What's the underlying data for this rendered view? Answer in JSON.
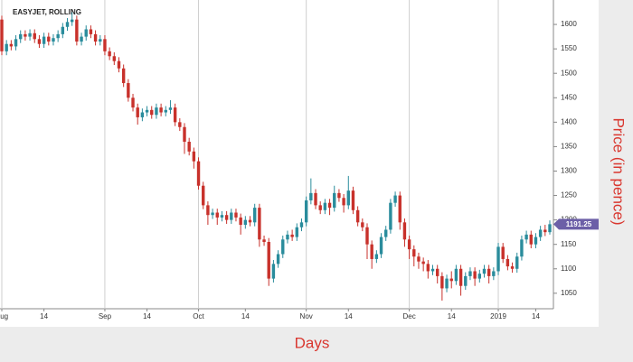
{
  "chart_data": {
    "type": "candlestick",
    "title": "EASYJET, ROLLING",
    "x_label": "Days",
    "y_label": "Price (in pence)",
    "up_color": "#2a8c9c",
    "down_color": "#c8312b",
    "ylim": [
      1022,
      1650
    ],
    "yticks": [
      1050,
      1100,
      1150,
      1200,
      1250,
      1300,
      1350,
      1400,
      1450,
      1500,
      1550,
      1600
    ],
    "categories": [
      "Aug",
      null,
      null,
      null,
      null,
      null,
      null,
      null,
      null,
      "14",
      null,
      null,
      null,
      null,
      null,
      null,
      null,
      null,
      null,
      null,
      null,
      null,
      "Sep",
      null,
      null,
      null,
      null,
      null,
      null,
      null,
      null,
      "14",
      null,
      null,
      null,
      null,
      null,
      null,
      null,
      null,
      null,
      null,
      "Oct",
      null,
      null,
      null,
      null,
      null,
      null,
      null,
      null,
      null,
      "14",
      null,
      null,
      null,
      null,
      null,
      null,
      null,
      null,
      null,
      null,
      null,
      null,
      "Nov",
      null,
      null,
      null,
      null,
      null,
      null,
      null,
      null,
      "14",
      null,
      null,
      null,
      null,
      null,
      null,
      null,
      null,
      null,
      null,
      null,
      null,
      "Dec",
      null,
      null,
      null,
      null,
      null,
      null,
      null,
      null,
      "14",
      null,
      null,
      null,
      null,
      null,
      null,
      null,
      null,
      null,
      "2019",
      null,
      null,
      null,
      null,
      null,
      null,
      null,
      "14",
      null,
      null,
      null
    ],
    "open": [
      1610,
      1545,
      1560,
      1555,
      1570,
      1580,
      1575,
      1582,
      1570,
      1560,
      1575,
      1565,
      1572,
      1580,
      1595,
      1605,
      1610,
      1565,
      1575,
      1590,
      1580,
      1565,
      1570,
      1545,
      1535,
      1525,
      1510,
      1480,
      1450,
      1430,
      1410,
      1420,
      1425,
      1415,
      1430,
      1420,
      1425,
      1430,
      1400,
      1390,
      1360,
      1340,
      1320,
      1270,
      1230,
      1210,
      1215,
      1205,
      1210,
      1200,
      1215,
      1205,
      1190,
      1200,
      1195,
      1225,
      1160,
      1155,
      1080,
      1110,
      1130,
      1160,
      1170,
      1165,
      1185,
      1195,
      1240,
      1255,
      1230,
      1220,
      1235,
      1225,
      1255,
      1245,
      1230,
      1260,
      1220,
      1195,
      1185,
      1150,
      1120,
      1130,
      1165,
      1180,
      1235,
      1250,
      1195,
      1160,
      1140,
      1125,
      1115,
      1110,
      1095,
      1100,
      1085,
      1060,
      1080,
      1075,
      1100,
      1065,
      1085,
      1095,
      1080,
      1090,
      1100,
      1085,
      1095,
      1145,
      1120,
      1105,
      1100,
      1125,
      1160,
      1170,
      1150,
      1165,
      1180,
      1175
    ],
    "high": [
      1618,
      1568,
      1568,
      1578,
      1588,
      1588,
      1590,
      1590,
      1578,
      1583,
      1583,
      1580,
      1588,
      1603,
      1613,
      1625,
      1618,
      1583,
      1598,
      1598,
      1588,
      1578,
      1578,
      1553,
      1543,
      1533,
      1518,
      1488,
      1458,
      1438,
      1428,
      1433,
      1433,
      1438,
      1438,
      1433,
      1445,
      1438,
      1408,
      1398,
      1368,
      1348,
      1328,
      1278,
      1238,
      1223,
      1223,
      1218,
      1218,
      1223,
      1223,
      1213,
      1208,
      1208,
      1233,
      1233,
      1168,
      1163,
      1118,
      1138,
      1168,
      1178,
      1180,
      1193,
      1203,
      1248,
      1285,
      1263,
      1238,
      1243,
      1243,
      1270,
      1263,
      1253,
      1290,
      1268,
      1228,
      1203,
      1193,
      1158,
      1138,
      1173,
      1188,
      1243,
      1258,
      1258,
      1203,
      1168,
      1148,
      1133,
      1123,
      1118,
      1108,
      1108,
      1093,
      1088,
      1095,
      1108,
      1108,
      1093,
      1103,
      1103,
      1098,
      1108,
      1108,
      1103,
      1153,
      1153,
      1128,
      1113,
      1133,
      1168,
      1178,
      1178,
      1173,
      1188,
      1190,
      1199
    ],
    "low": [
      1537,
      1537,
      1547,
      1547,
      1562,
      1567,
      1567,
      1562,
      1552,
      1552,
      1557,
      1557,
      1564,
      1572,
      1587,
      1597,
      1557,
      1557,
      1567,
      1572,
      1557,
      1557,
      1537,
      1527,
      1517,
      1502,
      1472,
      1442,
      1422,
      1395,
      1402,
      1412,
      1407,
      1407,
      1412,
      1412,
      1417,
      1392,
      1382,
      1335,
      1332,
      1305,
      1262,
      1222,
      1190,
      1202,
      1190,
      1197,
      1192,
      1192,
      1197,
      1170,
      1182,
      1187,
      1187,
      1145,
      1147,
      1065,
      1072,
      1102,
      1122,
      1152,
      1157,
      1157,
      1177,
      1187,
      1232,
      1222,
      1212,
      1212,
      1210,
      1217,
      1237,
      1215,
      1222,
      1212,
      1187,
      1177,
      1120,
      1100,
      1112,
      1122,
      1157,
      1172,
      1227,
      1180,
      1145,
      1120,
      1105,
      1100,
      1095,
      1080,
      1087,
      1070,
      1035,
      1052,
      1060,
      1067,
      1045,
      1057,
      1077,
      1065,
      1072,
      1082,
      1070,
      1077,
      1087,
      1112,
      1097,
      1092,
      1092,
      1117,
      1152,
      1142,
      1142,
      1157,
      1167,
      1170
    ],
    "close": [
      1545,
      1560,
      1555,
      1570,
      1580,
      1575,
      1582,
      1570,
      1560,
      1575,
      1565,
      1572,
      1580,
      1595,
      1605,
      1610,
      1565,
      1575,
      1590,
      1580,
      1565,
      1570,
      1545,
      1535,
      1525,
      1510,
      1480,
      1450,
      1430,
      1410,
      1420,
      1425,
      1415,
      1430,
      1420,
      1425,
      1430,
      1400,
      1390,
      1360,
      1340,
      1320,
      1270,
      1230,
      1210,
      1215,
      1205,
      1210,
      1200,
      1215,
      1205,
      1190,
      1200,
      1195,
      1225,
      1160,
      1155,
      1080,
      1110,
      1130,
      1160,
      1170,
      1165,
      1185,
      1195,
      1240,
      1255,
      1230,
      1220,
      1235,
      1225,
      1255,
      1245,
      1230,
      1260,
      1220,
      1195,
      1185,
      1150,
      1120,
      1130,
      1165,
      1180,
      1235,
      1250,
      1195,
      1160,
      1140,
      1125,
      1115,
      1110,
      1095,
      1100,
      1085,
      1060,
      1080,
      1075,
      1100,
      1065,
      1085,
      1095,
      1080,
      1090,
      1100,
      1085,
      1095,
      1145,
      1120,
      1105,
      1100,
      1125,
      1160,
      1170,
      1150,
      1165,
      1180,
      1175,
      1191.25
    ]
  }
}
